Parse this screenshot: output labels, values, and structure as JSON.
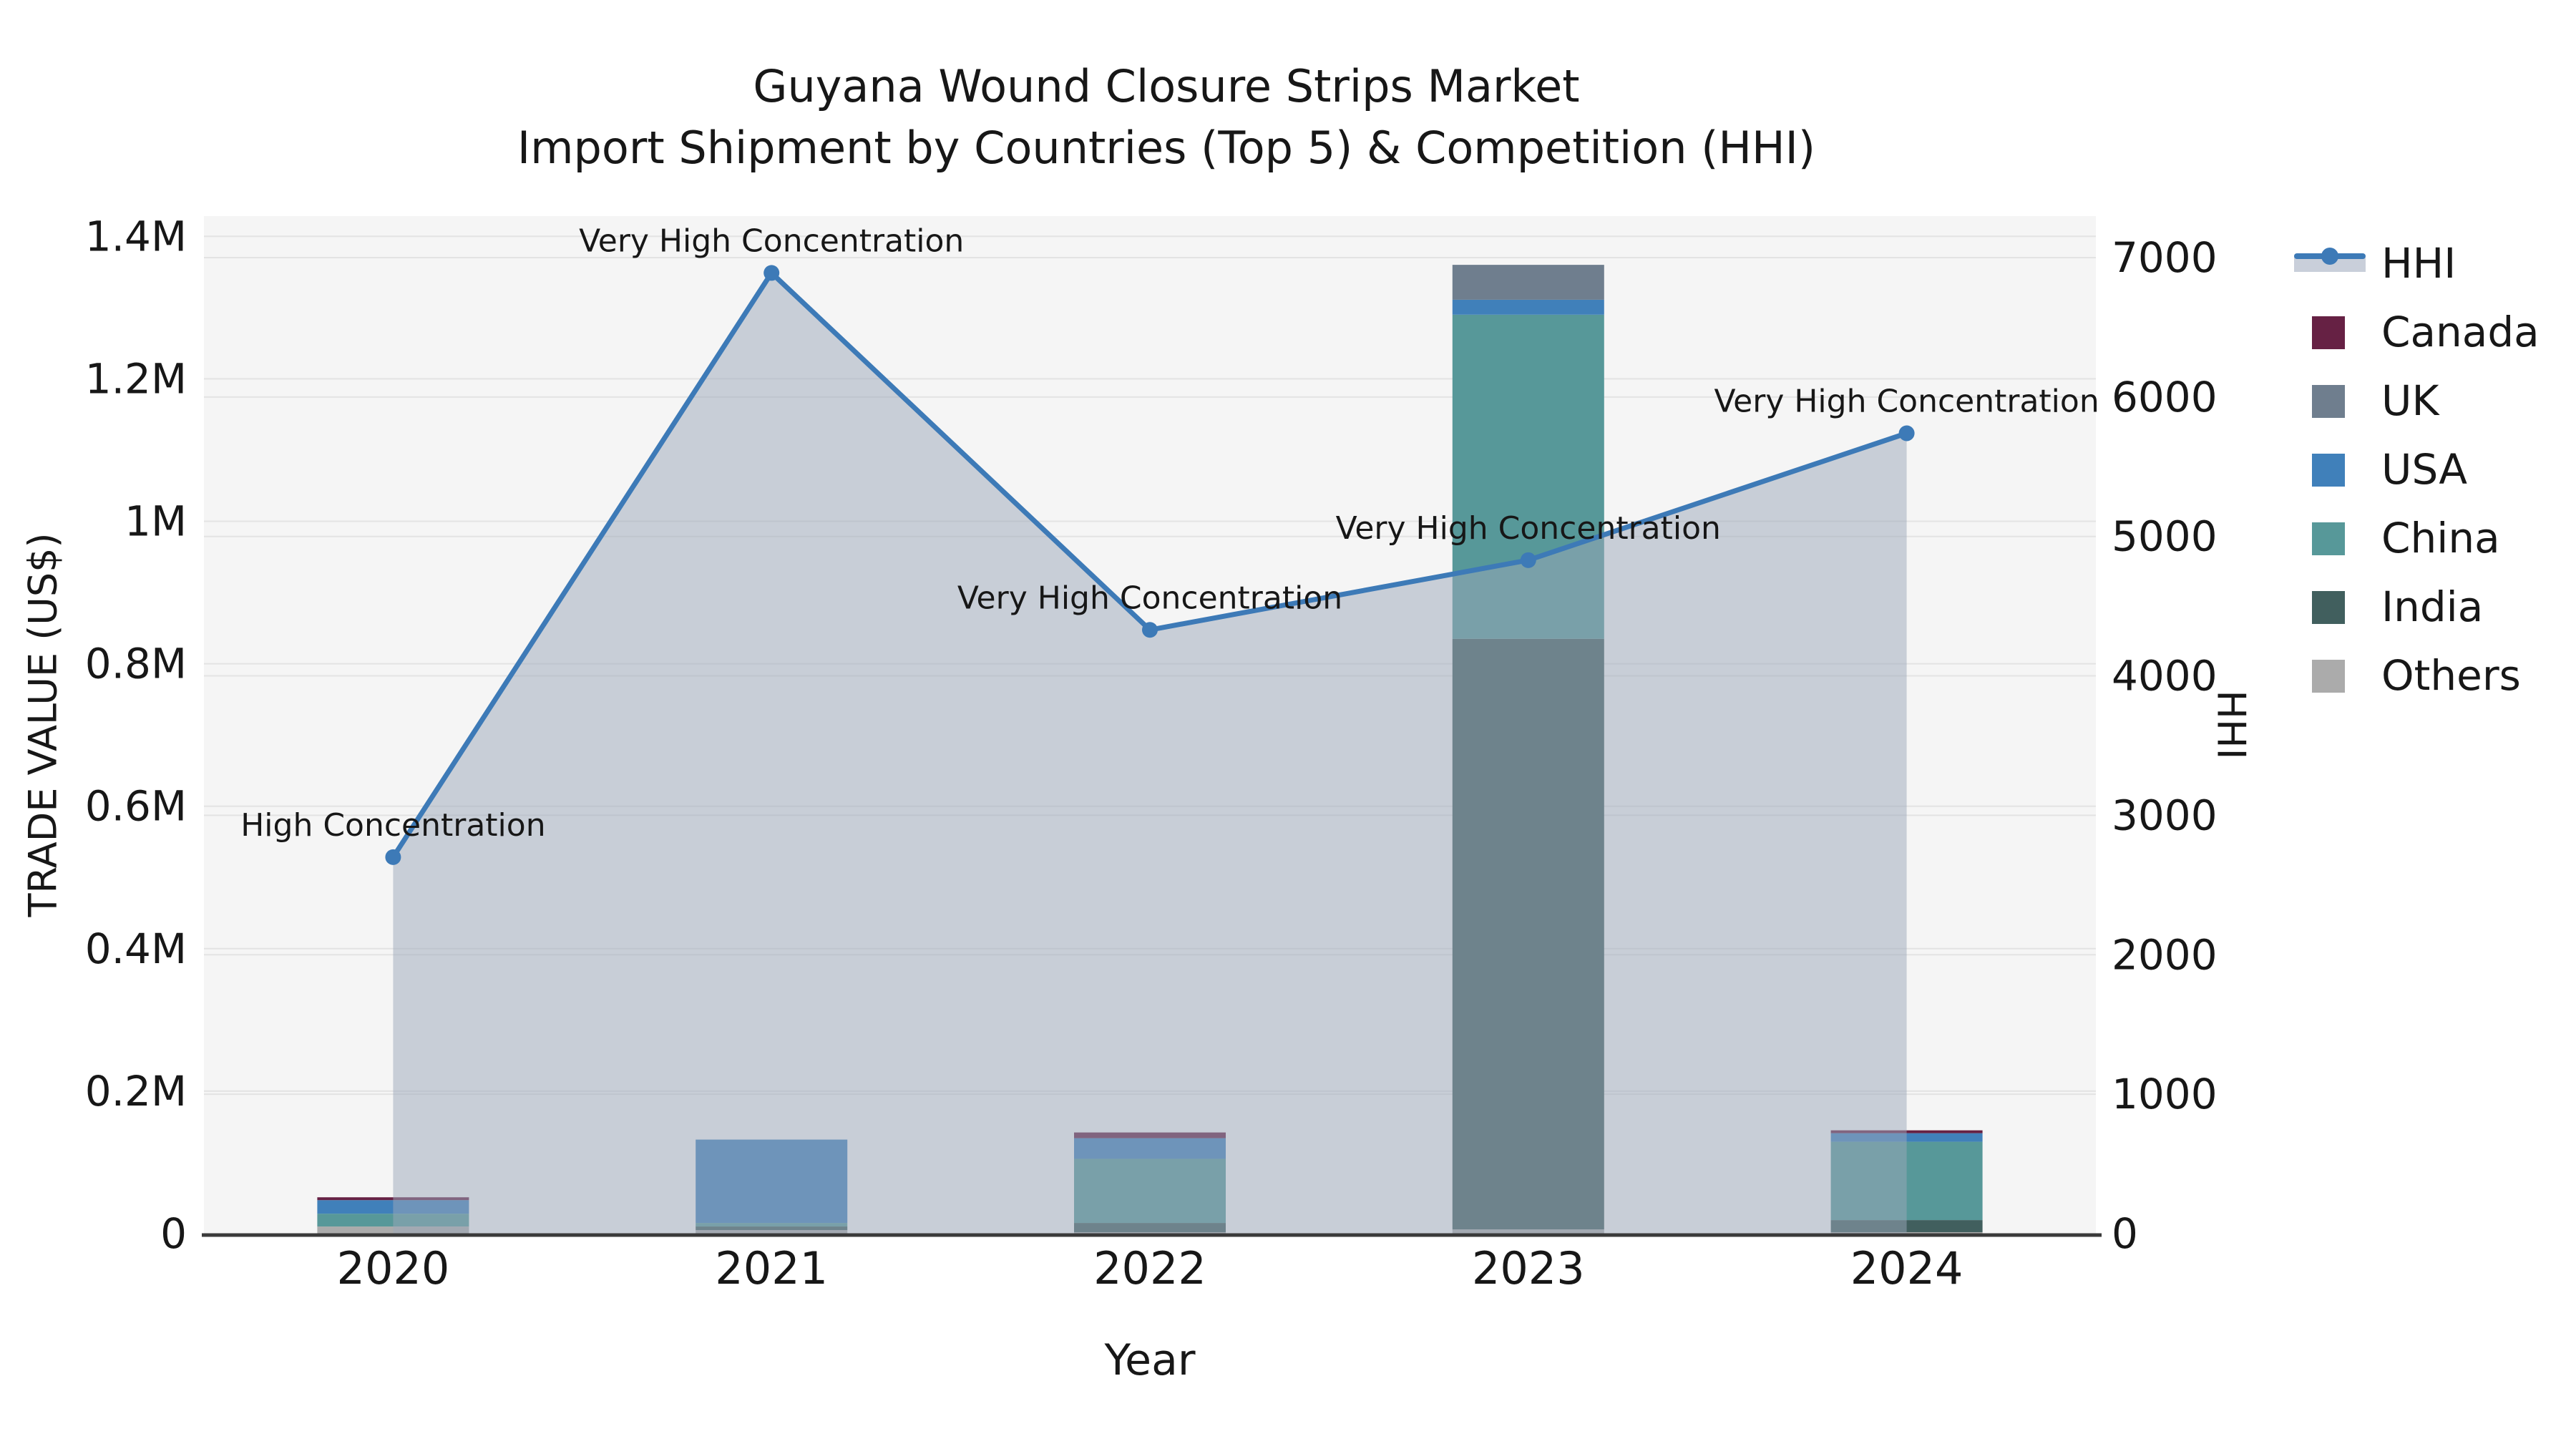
{
  "title": {
    "line1": "Guyana Wound Closure Strips Market",
    "line2": "Import Shipment by Countries (Top 5) & Competition (HHI)"
  },
  "colors": {
    "figure_background": "#ffffff",
    "plot_background": "#f5f5f5",
    "gridline": "#e3e3e3",
    "axis_line": "#3a3a3a",
    "hhi_line": "#3d7ab7",
    "hhi_area_fill": "rgba(155,167,185,0.5)",
    "canada": "#662144",
    "uk": "#6f7e8e",
    "usa": "#4080ba",
    "china": "#579899",
    "india": "#415f5e",
    "others": "#ababab"
  },
  "chart_data": {
    "type": "bar",
    "subtype": "stacked-bars-with-line-area-dual-axis",
    "categories": [
      "2020",
      "2021",
      "2022",
      "2023",
      "2024"
    ],
    "series": [
      {
        "name": "Canada",
        "color": "#662144",
        "values": [
          4000,
          0,
          8000,
          0,
          4000
        ]
      },
      {
        "name": "UK",
        "color": "#6f7e8e",
        "values": [
          0,
          0,
          0,
          49000,
          0
        ]
      },
      {
        "name": "USA",
        "color": "#4080ba",
        "values": [
          19000,
          117000,
          29000,
          21000,
          12000
        ]
      },
      {
        "name": "China",
        "color": "#579899",
        "values": [
          18000,
          5000,
          90000,
          455000,
          110000
        ]
      },
      {
        "name": "India",
        "color": "#415f5e",
        "values": [
          0,
          5000,
          13000,
          829000,
          17000
        ]
      },
      {
        "name": "Others",
        "color": "#ababab",
        "values": [
          10000,
          5000,
          2000,
          6000,
          2000
        ]
      }
    ],
    "stack_order_bottom_to_top": [
      "Others",
      "India",
      "China",
      "USA",
      "UK",
      "Canada"
    ],
    "line_series": {
      "name": "HHI",
      "color": "#3d7ab7",
      "area_fill": "rgba(155,167,185,0.5)",
      "values": [
        2700,
        6890,
        4330,
        4830,
        5740
      ]
    },
    "annotations": [
      "High Concentration",
      "Very High Concentration",
      "Very High Concentration",
      "Very High Concentration",
      "Very High Concentration"
    ],
    "left_axis": {
      "label": "TRADE VALUE (US$)",
      "tick_values": [
        0,
        200000,
        400000,
        600000,
        800000,
        1000000,
        1200000,
        1400000
      ],
      "tick_labels": [
        "0",
        "0.2M",
        "0.4M",
        "0.6M",
        "0.8M",
        "1M",
        "1.2M",
        "1.4M"
      ],
      "max": 1428000
    },
    "right_axis": {
      "label": "HHI",
      "tick_values": [
        0,
        1000,
        2000,
        3000,
        4000,
        5000,
        6000,
        7000
      ],
      "tick_labels": [
        "0",
        "1000",
        "2000",
        "3000",
        "4000",
        "5000",
        "6000",
        "7000"
      ],
      "max": 7297
    },
    "x_axis": {
      "label": "Year"
    },
    "grid": true,
    "legend_position": "right-outside"
  },
  "legend": {
    "items": [
      {
        "label": "HHI",
        "type": "line-area",
        "color": "#3d7ab7"
      },
      {
        "label": "Canada",
        "type": "swatch",
        "color": "#662144"
      },
      {
        "label": "UK",
        "type": "swatch",
        "color": "#6f7e8e"
      },
      {
        "label": "USA",
        "type": "swatch",
        "color": "#4080ba"
      },
      {
        "label": "China",
        "type": "swatch",
        "color": "#579899"
      },
      {
        "label": "India",
        "type": "swatch",
        "color": "#415f5e"
      },
      {
        "label": "Others",
        "type": "swatch",
        "color": "#ababab"
      }
    ]
  }
}
